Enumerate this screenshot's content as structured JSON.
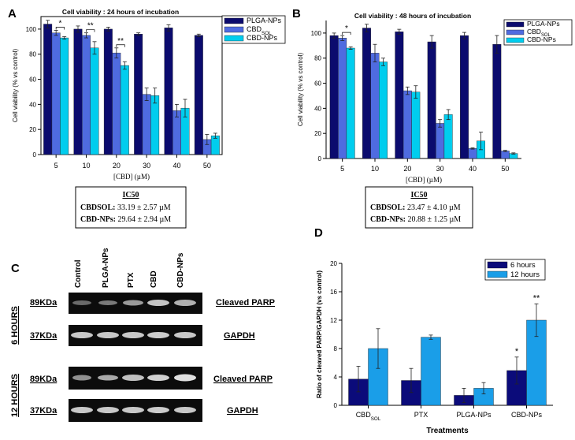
{
  "panels": {
    "a": "A",
    "b": "B",
    "c": "C",
    "d": "D"
  },
  "colors": {
    "plga": "#0b0b6e",
    "cbd_sol": "#4f6be0",
    "cbd_np": "#00cdee",
    "six": "#0b0b7a",
    "twelve": "#1a9ee8"
  },
  "chart_data": [
    {
      "id": "A",
      "type": "bar",
      "title": "Cell viability : 24 hours of incubation",
      "xlabel": "[CBD] (µM)",
      "ylabel": "Cell viability (% vs control)",
      "ylim": [
        0,
        110
      ],
      "yticks": [
        0,
        20,
        40,
        60,
        80,
        100
      ],
      "categories": [
        "5",
        "10",
        "20",
        "30",
        "40",
        "50"
      ],
      "series": [
        {
          "name": "PLGA-NPs",
          "values": [
            104,
            100,
            100,
            96,
            101,
            95
          ],
          "errors": [
            3,
            2.5,
            1.5,
            1,
            2.5,
            1
          ]
        },
        {
          "name": "CBDSOL",
          "values": [
            97,
            95,
            81,
            48,
            35,
            12
          ],
          "errors": [
            2,
            2,
            4,
            5,
            5,
            4
          ]
        },
        {
          "name": "CBD-NPs",
          "values": [
            93,
            85,
            71,
            47,
            37,
            15
          ],
          "errors": [
            1,
            5,
            3,
            6,
            7,
            2
          ]
        }
      ],
      "significance": [
        {
          "category": "5",
          "label": "*"
        },
        {
          "category": "10",
          "label": "**"
        },
        {
          "category": "20",
          "label": "**"
        }
      ]
    },
    {
      "id": "B",
      "type": "bar",
      "title": "Cell viability : 48 hours of incubation",
      "xlabel": "[CBD] (µM)",
      "ylabel": "Cell viability (% vs control)",
      "ylim": [
        0,
        110
      ],
      "yticks": [
        0,
        20,
        40,
        60,
        80,
        100
      ],
      "categories": [
        "5",
        "10",
        "20",
        "30",
        "40",
        "50"
      ],
      "series": [
        {
          "name": "PLGA-NPs",
          "values": [
            98,
            104,
            101,
            93,
            98,
            91
          ],
          "errors": [
            2,
            3,
            2,
            5,
            2.5,
            7
          ]
        },
        {
          "name": "CBDSOL",
          "values": [
            96,
            84,
            54,
            28,
            8,
            6
          ],
          "errors": [
            2,
            7,
            3,
            3,
            0.5,
            0.5
          ]
        },
        {
          "name": "CBD-NPs",
          "values": [
            88,
            77,
            53,
            35,
            14,
            4
          ],
          "errors": [
            1,
            3,
            5,
            4,
            7,
            0.5
          ]
        }
      ],
      "significance": [
        {
          "category": "5",
          "label": "*"
        }
      ]
    },
    {
      "id": "D",
      "type": "bar",
      "title": "",
      "xlabel": "Treatments",
      "ylabel": "Ratio of cleaved PARP/GAPDH (vs control)",
      "ylim": [
        0,
        20
      ],
      "yticks": [
        0,
        4,
        8,
        12,
        16,
        20
      ],
      "categories": [
        "CBDSOL",
        "PTX",
        "PLGA-NPs",
        "CBD-NPs"
      ],
      "series": [
        {
          "name": "6 hours",
          "values": [
            3.7,
            3.5,
            1.4,
            4.9
          ],
          "errors": [
            1.8,
            1.7,
            1.0,
            1.9
          ]
        },
        {
          "name": "12 hours",
          "values": [
            8.0,
            9.6,
            2.4,
            12.0
          ],
          "errors": [
            2.8,
            0.3,
            0.8,
            2.3
          ]
        }
      ],
      "significance": [
        {
          "category": "CBD-NPs",
          "series": "6 hours",
          "label": "*"
        },
        {
          "category": "CBD-NPs",
          "series": "12 hours",
          "label": "**"
        }
      ]
    }
  ],
  "ic50_a": {
    "title": "IC50",
    "rows": [
      {
        "label": "CBDSOL:",
        "value": "33.19 ± 2.57 µM"
      },
      {
        "label": "CBD-NPs:",
        "value": "29.64 ± 2.94 µM"
      }
    ]
  },
  "ic50_b": {
    "title": "IC50",
    "rows": [
      {
        "label": "CBDSOL:",
        "value": "23.47 ± 4.10 µM"
      },
      {
        "label": "CBD-NPs:",
        "value": "20.88 ± 1.25 µM"
      }
    ]
  },
  "blot": {
    "lanes": [
      "Control",
      "PLGA-NPs",
      "PTX",
      "CBD",
      "CBD-NPs"
    ],
    "groups": [
      {
        "label": "6 HOURS",
        "rows": [
          {
            "kda": "89KDa",
            "protein": "Cleaved PARP"
          },
          {
            "kda": "37KDa",
            "protein": "GAPDH"
          }
        ]
      },
      {
        "label": "12 HOURS",
        "rows": [
          {
            "kda": "89KDa",
            "protein": "Cleaved PARP"
          },
          {
            "kda": "37KDa",
            "protein": "GAPDH"
          }
        ]
      }
    ]
  }
}
